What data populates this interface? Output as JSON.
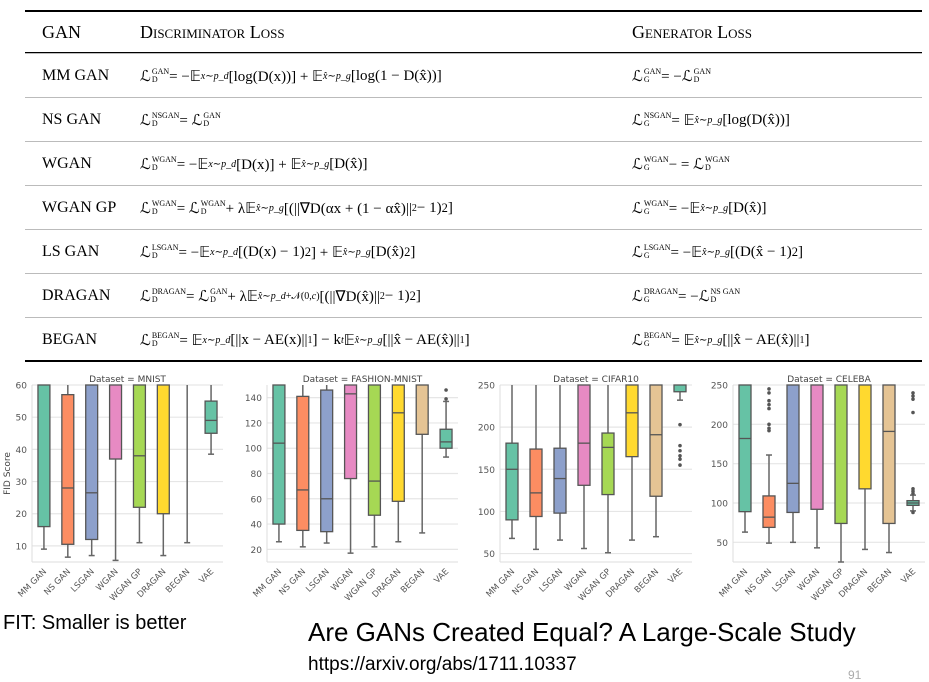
{
  "table": {
    "headers": [
      "GAN",
      "Discriminator Loss",
      "Generator Loss"
    ],
    "rows": [
      {
        "gan": "MM GAN",
        "disc": "ℒ_{D}^{GAN} = −𝔼_{x∼p_d}[log(D(x))] + 𝔼_{x̂∼p_g}[log(1 − D(x̂))]",
        "gen": "ℒ_{G}^{GAN} = −ℒ_{D}^{GAN}"
      },
      {
        "gan": "NS GAN",
        "disc": "ℒ_{D}^{NSGAN} = ℒ_{D}^{GAN}",
        "gen": "ℒ_{G}^{NSGAN} = 𝔼_{x̂∼p_g}[log(D(x̂))]"
      },
      {
        "gan": "WGAN",
        "disc": "ℒ_{D}^{WGAN} = −𝔼_{x∼p_d}[D(x)] + 𝔼_{x̂∼p_g}[D(x̂)]",
        "gen": "ℒ_{G}^{WGAN} − = ℒ_{D}^{WGAN}"
      },
      {
        "gan": "WGAN GP",
        "disc": "ℒ_{D}^{WGAN} = ℒ_{D}^{WGAN} + λ𝔼_{x̂∼p_g}[(||∇D(αx + (1 − αx̂)||_{2} − 1)^{2}]",
        "gen": "ℒ_{G}^{WGAN} = −𝔼_{x̂∼p_g}[D(x̂)]"
      },
      {
        "gan": "LS GAN",
        "disc": "ℒ_{D}^{LSGAN} = −𝔼_{x∼p_d}[(D(x) − 1)^{2}] + 𝔼_{x̂∼p_g}[D(x̂)^{2}]",
        "gen": "ℒ_{G}^{LSGAN} = −𝔼_{x̂∼p_g}[(D(x̂ − 1)^{2}]"
      },
      {
        "gan": "DRAGAN",
        "disc": "ℒ_{D}^{DRAGAN} = ℒ_{D}^{GAN} + λ𝔼_{x̂∼p_d+𝒩(0,c)}[(||∇D(x̂)||_{2} − 1)^{2}]",
        "gen": "ℒ_{G}^{DRAGAN} = −ℒ_{D}^{NS GAN}"
      },
      {
        "gan": "BEGAN",
        "disc": "ℒ_{D}^{BEGAN} = 𝔼_{x∼p_d}[||x − AE(x)||_{1}] − k_{t}𝔼_{x̂∼p_g}[||x̂ − AE(x̂)||_{1}]",
        "gen": "ℒ_{G}^{BEGAN} = 𝔼_{x̂∼p_g}[||x̂ − AE(x̂)||_{1}]"
      }
    ]
  },
  "chart_data": [
    {
      "type": "box",
      "title": "Dataset = MNIST",
      "ylabel": "FID Score",
      "ylim": [
        5,
        60
      ],
      "yticks": [
        10,
        20,
        30,
        40,
        50,
        60
      ],
      "categories": [
        "MM GAN",
        "NS GAN",
        "LSGAN",
        "WGAN",
        "WGAN GP",
        "DRAGAN",
        "BEGAN",
        "VAE"
      ],
      "boxes": [
        [
          9,
          16,
          null,
          60,
          60
        ],
        [
          6.5,
          10.5,
          28,
          57,
          60
        ],
        [
          7,
          12,
          26.5,
          60,
          60
        ],
        [
          5.5,
          37,
          null,
          60,
          60
        ],
        [
          11,
          22,
          38,
          60,
          60
        ],
        [
          7,
          20,
          null,
          60,
          60
        ],
        [
          11,
          null,
          null,
          null,
          60
        ],
        [
          38.5,
          45,
          49,
          55,
          60
        ]
      ],
      "fliers": [
        [],
        [],
        [],
        [],
        [],
        [],
        [],
        []
      ]
    },
    {
      "type": "box",
      "title": "Dataset = FASHION-MNIST",
      "ylabel": "",
      "ylim": [
        10,
        150
      ],
      "yticks": [
        20,
        40,
        60,
        80,
        100,
        120,
        140
      ],
      "categories": [
        "MM GAN",
        "NS GAN",
        "LSGAN",
        "WGAN",
        "WGAN GP",
        "DRAGAN",
        "BEGAN",
        "VAE"
      ],
      "boxes": [
        [
          26,
          40,
          104,
          150,
          150
        ],
        [
          22,
          35,
          67,
          141,
          150
        ],
        [
          25,
          34,
          60,
          146,
          150
        ],
        [
          17,
          76,
          143,
          150,
          150
        ],
        [
          22,
          47,
          74,
          150,
          150
        ],
        [
          26,
          58,
          128,
          150,
          150
        ],
        [
          33,
          111,
          null,
          150,
          150
        ],
        [
          93,
          100,
          105,
          115,
          137
        ]
      ],
      "fliers": [
        [],
        [],
        [],
        [],
        [],
        [],
        [],
        [
          139,
          146
        ]
      ]
    },
    {
      "type": "box",
      "title": "Dataset = CIFAR10",
      "ylabel": "",
      "ylim": [
        40,
        250
      ],
      "yticks": [
        50,
        100,
        150,
        200,
        250
      ],
      "categories": [
        "MM GAN",
        "NS GAN",
        "LSGAN",
        "WGAN",
        "WGAN GP",
        "DRAGAN",
        "BEGAN",
        "VAE"
      ],
      "boxes": [
        [
          68,
          90,
          150,
          181,
          250
        ],
        [
          55,
          94,
          122,
          174,
          250
        ],
        [
          66,
          98,
          139,
          175,
          250
        ],
        [
          56,
          131,
          181,
          250,
          250
        ],
        [
          51,
          120,
          176,
          193,
          250
        ],
        [
          66,
          165,
          217,
          250,
          250
        ],
        [
          70,
          118,
          191,
          250,
          250
        ],
        [
          232,
          242,
          null,
          250,
          250
        ]
      ],
      "fliers": [
        [],
        [],
        [],
        [],
        [],
        [],
        [],
        [
          155,
          162,
          166,
          172,
          178,
          203
        ]
      ]
    },
    {
      "type": "box",
      "title": "Dataset = CELEBA",
      "ylabel": "",
      "ylim": [
        25,
        250
      ],
      "yticks": [
        50,
        100,
        150,
        200,
        250
      ],
      "categories": [
        "MM GAN",
        "NS GAN",
        "LSGAN",
        "WGAN",
        "WGAN GP",
        "DRAGAN",
        "BEGAN",
        "VAE"
      ],
      "boxes": [
        [
          63,
          89,
          182,
          250,
          250
        ],
        [
          49,
          69,
          82,
          109,
          161
        ],
        [
          50,
          88,
          125,
          250,
          250
        ],
        [
          43,
          92,
          null,
          250,
          250
        ],
        [
          25,
          74,
          null,
          250,
          250
        ],
        [
          41,
          118,
          null,
          250,
          250
        ],
        [
          37,
          74,
          191,
          250,
          250
        ],
        [
          90,
          97,
          100,
          103,
          110
        ]
      ],
      "fliers": [
        [],
        [
          192,
          195,
          200,
          220,
          225,
          230,
          240,
          245
        ],
        [],
        [],
        [],
        [],
        [],
        [
          88,
          112,
          115,
          118,
          215,
          232,
          236,
          240
        ]
      ]
    }
  ],
  "colors": [
    "#66c2a5",
    "#fc8d62",
    "#8da0cb",
    "#e78ac3",
    "#a6d854",
    "#ffd92f",
    "#e5c494",
    "#66c2a5"
  ],
  "footer": {
    "note": "FIT: Smaller is better",
    "title": "Are GANs Created Equal? A Large-Scale Study",
    "url": "https://arxiv.org/abs/1711.10337",
    "page": "91"
  }
}
